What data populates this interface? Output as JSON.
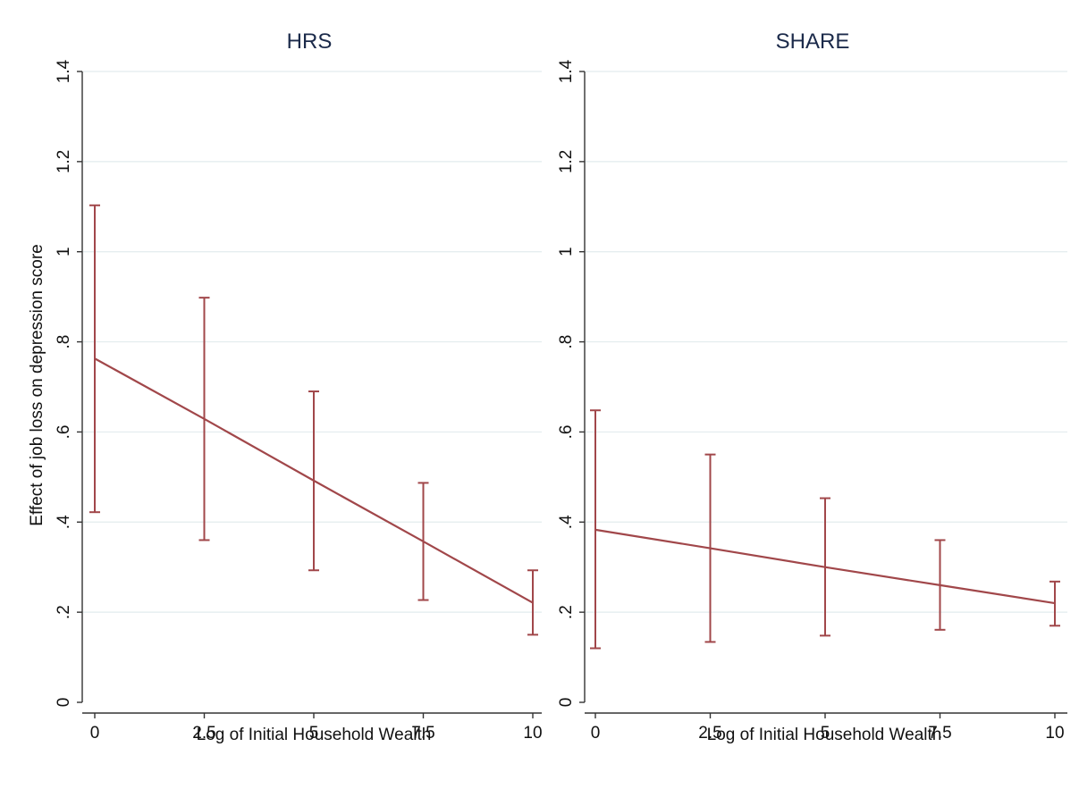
{
  "chart_data": [
    {
      "type": "line",
      "title": "HRS",
      "xlabel": "Log of Initial Household Wealth",
      "ylabel": "Effect of job loss on depression score",
      "xlim": [
        0,
        10
      ],
      "ylim": [
        0,
        1.4
      ],
      "xticks": [
        0,
        2.5,
        5,
        7.5,
        10
      ],
      "xtick_labels": [
        "0",
        "2.5",
        "5",
        "7.5",
        "10"
      ],
      "yticks": [
        0,
        0.2,
        0.4,
        0.6,
        0.8,
        1,
        1.2,
        1.4
      ],
      "ytick_labels": [
        "0",
        ".2",
        ".4",
        ".6",
        ".8",
        "1",
        "1.2",
        "1.4"
      ],
      "grid": true,
      "line_color": "#a1474a",
      "x": [
        0,
        2.5,
        5,
        7.5,
        10
      ],
      "y": [
        0.763,
        0.629,
        0.492,
        0.357,
        0.221
      ],
      "ci_low": [
        0.422,
        0.36,
        0.293,
        0.227,
        0.15
      ],
      "ci_high": [
        1.103,
        0.898,
        0.69,
        0.487,
        0.293
      ]
    },
    {
      "type": "line",
      "title": "SHARE",
      "xlabel": "Log of Initial Household Wealth",
      "ylabel": "",
      "xlim": [
        0,
        10
      ],
      "ylim": [
        0,
        1.4
      ],
      "xticks": [
        0,
        2.5,
        5,
        7.5,
        10
      ],
      "xtick_labels": [
        "0",
        "2.5",
        "5",
        "7.5",
        "10"
      ],
      "yticks": [
        0,
        0.2,
        0.4,
        0.6,
        0.8,
        1,
        1.2,
        1.4
      ],
      "ytick_labels": [
        "0",
        ".2",
        ".4",
        ".6",
        ".8",
        "1",
        "1.2",
        "1.4"
      ],
      "grid": true,
      "line_color": "#a1474a",
      "x": [
        0,
        2.5,
        5,
        7.5,
        10
      ],
      "y": [
        0.383,
        0.342,
        0.3,
        0.26,
        0.22
      ],
      "ci_low": [
        0.12,
        0.134,
        0.148,
        0.161,
        0.17
      ],
      "ci_high": [
        0.648,
        0.55,
        0.453,
        0.36,
        0.268
      ]
    }
  ]
}
